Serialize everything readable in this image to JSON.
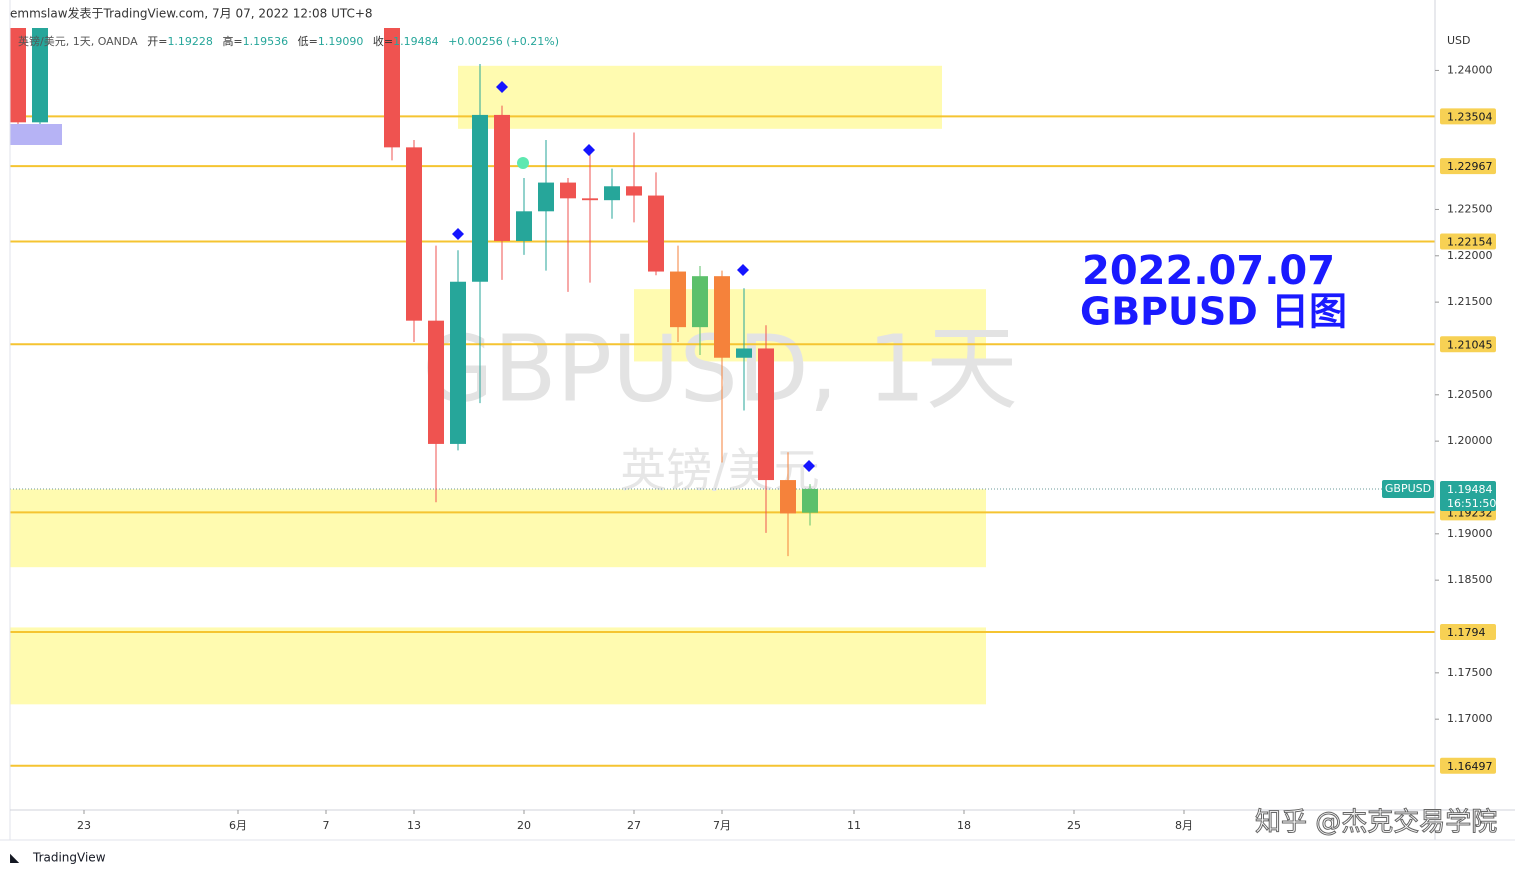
{
  "header": {
    "publisher": "emmslaw发表于TradingView.com, 7月 07, 2022 12:08 UTC+8",
    "legend": {
      "symbol": "英镑/美元, 1天, OANDA",
      "items": [
        {
          "label": "开=",
          "value": "1.19228"
        },
        {
          "label": "高=",
          "value": "1.19536"
        },
        {
          "label": "低=",
          "value": "1.19090"
        },
        {
          "label": "收=",
          "value": "1.19484"
        }
      ],
      "change": "+0.00256 (+0.21%)"
    }
  },
  "chart_data": {
    "type": "candlestick",
    "watermark": "GBPUSD, 1天",
    "watermark_sub": "英镑/美元",
    "annotation": [
      "2022.07.07",
      "GBPUSD 日图"
    ],
    "axis_title": "USD",
    "x": [
      "2022-05-18",
      "2022-05-19",
      "2022-06-10",
      "2022-06-13",
      "2022-06-14",
      "2022-06-15",
      "2022-06-16",
      "2022-06-17",
      "2022-06-20",
      "2022-06-21",
      "2022-06-22",
      "2022-06-23",
      "2022-06-24",
      "2022-06-27",
      "2022-06-28",
      "2022-06-29",
      "2022-06-30",
      "2022-07-01",
      "2022-07-04",
      "2022-07-05",
      "2022-07-06",
      "2022-07-07"
    ],
    "open": [
      1.249,
      1.2344,
      1.249,
      1.2317,
      1.213,
      1.1997,
      1.2172,
      1.2352,
      1.2216,
      1.2248,
      1.2279,
      1.2262,
      1.226,
      1.2275,
      1.2265,
      1.2183,
      1.2123,
      1.2178,
      1.209,
      1.21,
      1.1958,
      1.19228
    ],
    "high": [
      1.2525,
      1.25,
      1.251,
      1.2325,
      1.2211,
      1.2206,
      1.2407,
      1.2362,
      1.2284,
      1.2325,
      1.2284,
      1.2314,
      1.2294,
      1.2333,
      1.229,
      1.2211,
      1.2189,
      1.2184,
      1.2165,
      1.2125,
      1.1988,
      1.19536
    ],
    "low": [
      1.2333,
      1.2337,
      1.2303,
      1.2107,
      1.1934,
      1.199,
      1.2041,
      1.2174,
      1.2201,
      1.2184,
      1.2161,
      1.2171,
      1.224,
      1.2236,
      1.2179,
      1.2107,
      1.2093,
      1.1977,
      1.2033,
      1.1901,
      1.1876,
      1.1909
    ],
    "close": [
      1.2344,
      1.249,
      1.2317,
      1.213,
      1.1997,
      1.2172,
      1.2352,
      1.2216,
      1.2248,
      1.2279,
      1.2262,
      1.226,
      1.2275,
      1.2265,
      1.2183,
      1.2123,
      1.2178,
      1.209,
      1.21,
      1.1958,
      1.1922,
      1.19484
    ],
    "colors": [
      "#ef5350",
      "#26a69a",
      "#ef5350",
      "#ef5350",
      "#ef5350",
      "#26a69a",
      "#26a69a",
      "#ef5350",
      "#26a69a",
      "#26a69a",
      "#ef5350",
      "#ef5350",
      "#26a69a",
      "#ef5350",
      "#ef5350",
      "#f5823b",
      "#5cc06b",
      "#f5823b",
      "#26a69a",
      "#ef5350",
      "#f5823b",
      "#5cc06b"
    ],
    "xlim": [
      "2022-05-18",
      "2022-08-16"
    ],
    "xticks": [
      {
        "value": "2022-05-23",
        "label": "23"
      },
      {
        "value": "2022-06-01",
        "label": "6月"
      },
      {
        "value": "2022-06-07",
        "label": "7"
      },
      {
        "value": "2022-06-13",
        "label": "13"
      },
      {
        "value": "2022-06-20",
        "label": "20"
      },
      {
        "value": "2022-06-27",
        "label": "27"
      },
      {
        "value": "2022-07-01",
        "label": "7月"
      },
      {
        "value": "2022-07-11",
        "label": "11"
      },
      {
        "value": "2022-07-18",
        "label": "18"
      },
      {
        "value": "2022-07-25",
        "label": "25"
      },
      {
        "value": "2022-08-01",
        "label": "8月"
      }
    ],
    "ylim": [
      1.1602,
      1.2476
    ],
    "yticks": [
      {
        "value": 1.24,
        "label": "1.24000"
      },
      {
        "value": 1.225,
        "label": "1.22500"
      },
      {
        "value": 1.22,
        "label": "1.22000"
      },
      {
        "value": 1.215,
        "label": "1.21500"
      },
      {
        "value": 1.205,
        "label": "1.20500"
      },
      {
        "value": 1.2,
        "label": "1.20000"
      },
      {
        "value": 1.19,
        "label": "1.19000"
      },
      {
        "value": 1.185,
        "label": "1.18500"
      },
      {
        "value": 1.175,
        "label": "1.17500"
      },
      {
        "value": 1.17,
        "label": "1.17000"
      }
    ],
    "grid": false,
    "levels": [
      1.23504,
      1.22967,
      1.22154,
      1.21045,
      1.19232,
      1.1794,
      1.16497
    ],
    "level_color": "#f5c431",
    "zones": [
      {
        "from": "2022-06-15",
        "to": "2022-07-15",
        "low": 1.2337,
        "high": 1.2405
      },
      {
        "from": "2022-06-27",
        "to": "2022-07-19",
        "low": 1.2086,
        "high": 1.2164
      },
      {
        "from": "2022-05-17",
        "to": "2022-07-19",
        "low": 1.1864,
        "high": 1.1948
      },
      {
        "from": "2022-05-17",
        "to": "2022-07-19",
        "low": 1.1716,
        "high": 1.1799
      }
    ],
    "zone_color": "#fffbb0",
    "last_price": {
      "tag": "GBPUSD",
      "countdown": "16:51:50",
      "color": "#26a69a"
    }
  },
  "footer": {
    "brand": "TradingView",
    "credit": "知乎 @杰克交易学院"
  }
}
